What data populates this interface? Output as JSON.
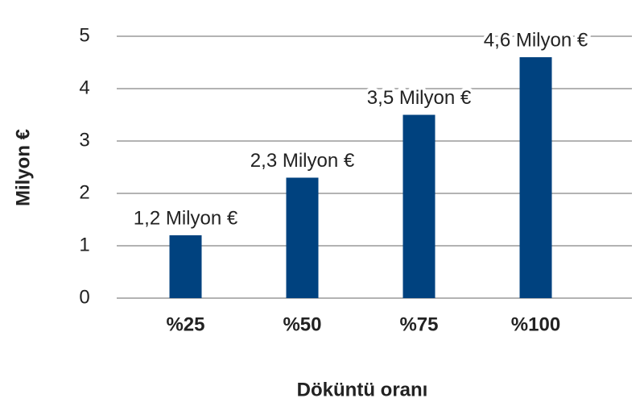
{
  "chart_data": {
    "type": "bar",
    "x_label": "Döküntü oranı",
    "y_label": "Milyon €",
    "categories": [
      "%25",
      "%50",
      "%75",
      "%100"
    ],
    "values": [
      1.2,
      2.3,
      3.5,
      4.6
    ],
    "value_labels": [
      "1,2 Milyon €",
      "2,3 Milyon €",
      "3,5 Milyon €",
      "4,6 Milyon €"
    ],
    "color": "#00427f",
    "ylim": [
      0,
      5
    ],
    "yticks": [
      0,
      1,
      2,
      3,
      4,
      5
    ],
    "grid": true
  }
}
